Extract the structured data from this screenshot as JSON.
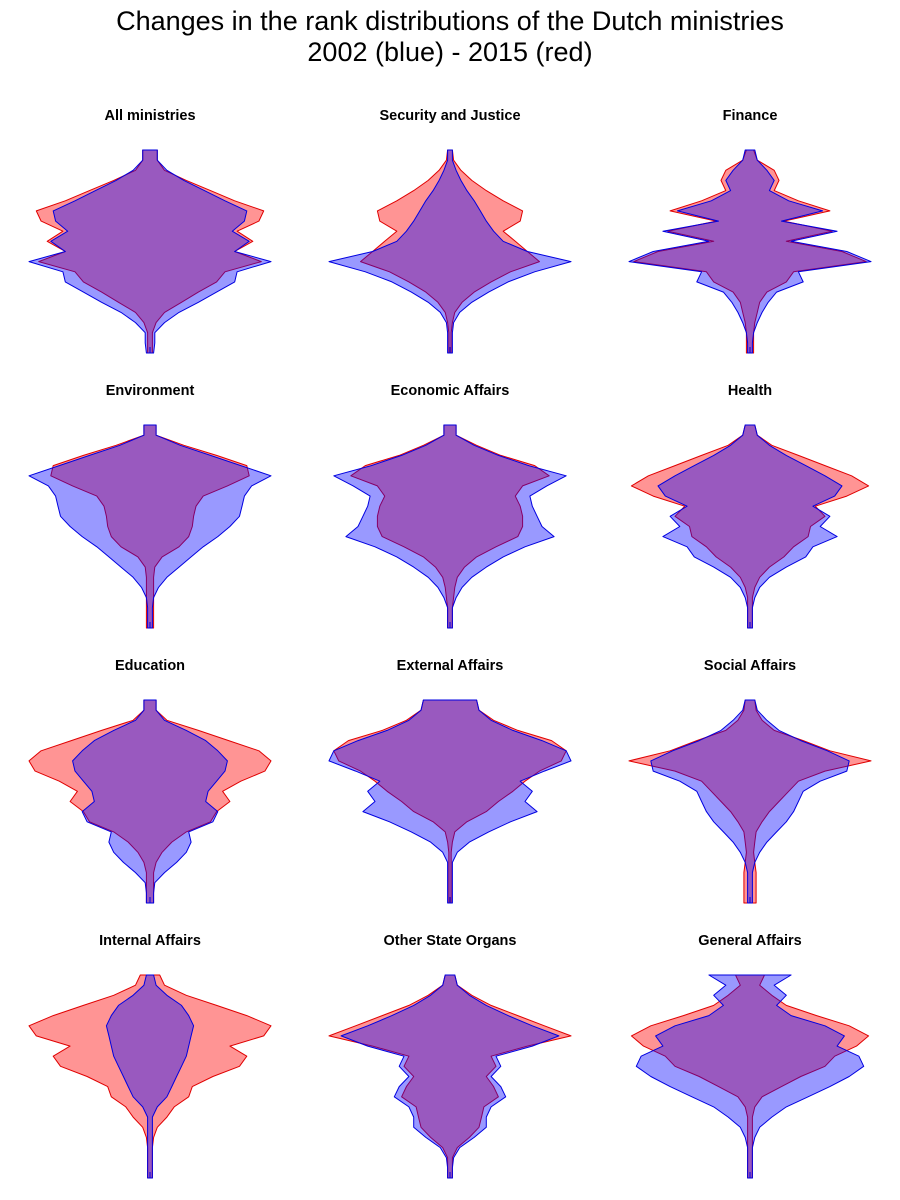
{
  "title_line1": "Changes in the rank distributions of the Dutch ministries",
  "title_line2": "2002 (blue) - 2015 (red)",
  "chart_data": {
    "type": "area",
    "description_note": "Mirrored (violin-style) rank distribution profiles; each profile lists relative half-width (0-1) at 21 evenly spaced rank levels from top of panel to bottom.",
    "series_colors": {
      "2002": "#0000ff",
      "2015": "#ff0000"
    },
    "legend": "in title",
    "panels": [
      {
        "name": "All ministries",
        "blue": [
          0.06,
          0.06,
          0.14,
          0.28,
          0.45,
          0.62,
          0.8,
          0.78,
          0.68,
          0.82,
          0.7,
          1.0,
          0.72,
          0.7,
          0.55,
          0.4,
          0.24,
          0.12,
          0.04,
          0.04,
          0.03
        ],
        "red": [
          0.06,
          0.06,
          0.12,
          0.3,
          0.5,
          0.7,
          0.94,
          0.9,
          0.72,
          0.85,
          0.7,
          0.92,
          0.62,
          0.55,
          0.4,
          0.26,
          0.12,
          0.05,
          0.02,
          0.02,
          0.02
        ]
      },
      {
        "name": "Security and Justice",
        "blue": [
          0.02,
          0.02,
          0.05,
          0.09,
          0.14,
          0.2,
          0.25,
          0.3,
          0.36,
          0.44,
          0.64,
          1.0,
          0.7,
          0.48,
          0.32,
          0.18,
          0.08,
          0.03,
          0.02,
          0.02,
          0.02
        ],
        "red": [
          0.02,
          0.03,
          0.09,
          0.18,
          0.3,
          0.44,
          0.6,
          0.58,
          0.44,
          0.54,
          0.64,
          0.74,
          0.5,
          0.34,
          0.2,
          0.1,
          0.04,
          0.02,
          0.01,
          0.01,
          0.01
        ]
      },
      {
        "name": "Finance",
        "blue": [
          0.04,
          0.06,
          0.14,
          0.2,
          0.16,
          0.32,
          0.6,
          0.26,
          0.72,
          0.34,
          0.8,
          1.0,
          0.4,
          0.44,
          0.22,
          0.15,
          0.1,
          0.06,
          0.03,
          0.02,
          0.02
        ],
        "red": [
          0.03,
          0.06,
          0.2,
          0.24,
          0.2,
          0.4,
          0.66,
          0.28,
          0.68,
          0.3,
          0.76,
          0.96,
          0.36,
          0.3,
          0.14,
          0.08,
          0.06,
          0.04,
          0.03,
          0.03,
          0.03
        ]
      },
      {
        "name": "Environment",
        "blue": [
          0.05,
          0.05,
          0.25,
          0.5,
          0.75,
          1.0,
          0.84,
          0.78,
          0.76,
          0.74,
          0.66,
          0.56,
          0.44,
          0.34,
          0.24,
          0.14,
          0.07,
          0.03,
          0.02,
          0.02,
          0.02
        ],
        "red": [
          0.05,
          0.05,
          0.28,
          0.55,
          0.8,
          0.82,
          0.64,
          0.44,
          0.38,
          0.36,
          0.35,
          0.32,
          0.24,
          0.1,
          0.04,
          0.03,
          0.03,
          0.03,
          0.03,
          0.03,
          0.03
        ]
      },
      {
        "name": "Economic Affairs",
        "blue": [
          0.05,
          0.05,
          0.2,
          0.4,
          0.65,
          0.96,
          0.8,
          0.66,
          0.68,
          0.72,
          0.76,
          0.86,
          0.62,
          0.44,
          0.3,
          0.18,
          0.1,
          0.05,
          0.02,
          0.02,
          0.02
        ],
        "red": [
          0.05,
          0.05,
          0.22,
          0.42,
          0.7,
          0.82,
          0.6,
          0.54,
          0.58,
          0.6,
          0.6,
          0.56,
          0.38,
          0.22,
          0.12,
          0.06,
          0.04,
          0.03,
          0.02,
          0.02,
          0.02
        ]
      },
      {
        "name": "Health",
        "blue": [
          0.04,
          0.06,
          0.16,
          0.3,
          0.46,
          0.62,
          0.76,
          0.7,
          0.52,
          0.66,
          0.58,
          0.72,
          0.52,
          0.46,
          0.3,
          0.16,
          0.08,
          0.04,
          0.02,
          0.02,
          0.02
        ],
        "red": [
          0.04,
          0.06,
          0.18,
          0.4,
          0.62,
          0.84,
          0.98,
          0.8,
          0.54,
          0.62,
          0.5,
          0.48,
          0.36,
          0.28,
          0.16,
          0.08,
          0.04,
          0.02,
          0.02,
          0.02,
          0.02
        ]
      },
      {
        "name": "Education",
        "blue": [
          0.05,
          0.05,
          0.12,
          0.3,
          0.46,
          0.56,
          0.64,
          0.62,
          0.55,
          0.48,
          0.46,
          0.56,
          0.52,
          0.32,
          0.34,
          0.3,
          0.22,
          0.12,
          0.04,
          0.03,
          0.03
        ],
        "red": [
          0.05,
          0.05,
          0.14,
          0.4,
          0.65,
          0.9,
          1.0,
          0.95,
          0.75,
          0.6,
          0.66,
          0.55,
          0.5,
          0.3,
          0.18,
          0.1,
          0.05,
          0.03,
          0.03,
          0.03,
          0.03
        ]
      },
      {
        "name": "External Affairs",
        "blue": [
          0.22,
          0.24,
          0.34,
          0.52,
          0.76,
          0.96,
          1.0,
          0.78,
          0.58,
          0.68,
          0.62,
          0.72,
          0.5,
          0.32,
          0.16,
          0.06,
          0.02,
          0.02,
          0.02,
          0.02,
          0.02
        ],
        "red": [
          0.22,
          0.24,
          0.36,
          0.56,
          0.84,
          0.96,
          0.92,
          0.74,
          0.62,
          0.52,
          0.4,
          0.3,
          0.14,
          0.04,
          0.02,
          0.01,
          0.01,
          0.01,
          0.01,
          0.01,
          0.01
        ]
      },
      {
        "name": "Social Affairs",
        "blue": [
          0.04,
          0.06,
          0.14,
          0.24,
          0.42,
          0.64,
          0.82,
          0.8,
          0.58,
          0.44,
          0.4,
          0.36,
          0.3,
          0.22,
          0.14,
          0.08,
          0.04,
          0.02,
          0.02,
          0.02,
          0.02
        ],
        "red": [
          0.04,
          0.05,
          0.1,
          0.2,
          0.44,
          0.66,
          1.0,
          0.62,
          0.4,
          0.32,
          0.24,
          0.16,
          0.1,
          0.05,
          0.04,
          0.03,
          0.04,
          0.05,
          0.05,
          0.05,
          0.05
        ]
      },
      {
        "name": "Internal Affairs",
        "blue": [
          0.03,
          0.05,
          0.14,
          0.26,
          0.32,
          0.36,
          0.34,
          0.32,
          0.3,
          0.26,
          0.22,
          0.18,
          0.14,
          0.06,
          0.02,
          0.02,
          0.02,
          0.02,
          0.02,
          0.02,
          0.02
        ],
        "red": [
          0.08,
          0.12,
          0.3,
          0.55,
          0.8,
          1.0,
          0.94,
          0.66,
          0.8,
          0.74,
          0.52,
          0.35,
          0.32,
          0.2,
          0.14,
          0.06,
          0.03,
          0.02,
          0.02,
          0.02,
          0.02
        ]
      },
      {
        "name": "Other State Organs",
        "blue": [
          0.04,
          0.06,
          0.16,
          0.3,
          0.48,
          0.68,
          0.9,
          0.68,
          0.38,
          0.42,
          0.34,
          0.42,
          0.46,
          0.34,
          0.3,
          0.3,
          0.2,
          0.08,
          0.03,
          0.02,
          0.02
        ],
        "red": [
          0.04,
          0.06,
          0.18,
          0.34,
          0.56,
          0.78,
          1.0,
          0.64,
          0.34,
          0.38,
          0.3,
          0.36,
          0.4,
          0.28,
          0.26,
          0.24,
          0.16,
          0.06,
          0.02,
          0.02,
          0.02
        ]
      },
      {
        "name": "General Affairs",
        "blue": [
          0.34,
          0.2,
          0.3,
          0.22,
          0.34,
          0.62,
          0.78,
          0.72,
          0.9,
          0.94,
          0.82,
          0.66,
          0.48,
          0.3,
          0.18,
          0.08,
          0.04,
          0.02,
          0.02,
          0.02,
          0.02
        ],
        "red": [
          0.12,
          0.08,
          0.18,
          0.3,
          0.55,
          0.82,
          0.98,
          0.88,
          0.7,
          0.62,
          0.42,
          0.26,
          0.1,
          0.04,
          0.02,
          0.02,
          0.02,
          0.02,
          0.02,
          0.02,
          0.02
        ]
      }
    ]
  }
}
